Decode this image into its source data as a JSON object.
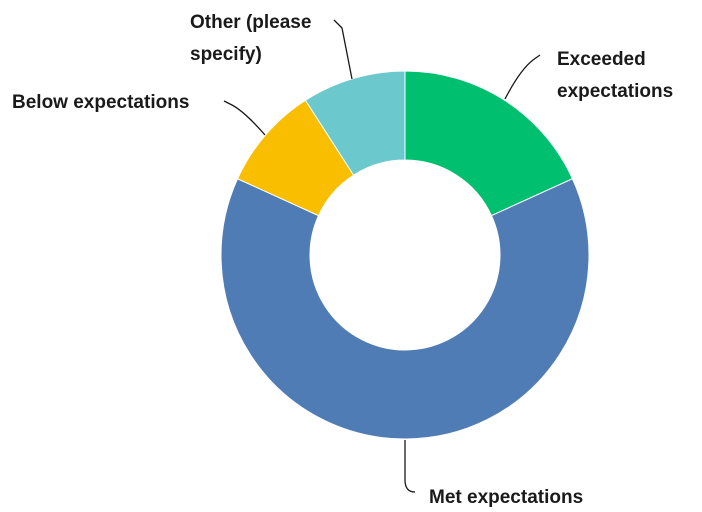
{
  "chart_data": {
    "type": "pie",
    "variant": "donut",
    "title": "",
    "legend": "none",
    "slices": [
      {
        "label": "Exceeded expectations",
        "value": 18.2,
        "color": "#00BF6F"
      },
      {
        "label": "Met expectations",
        "value": 63.6,
        "color": "#507CB6"
      },
      {
        "label": "Below expectations",
        "value": 9.1,
        "color": "#F9BE00"
      },
      {
        "label": "Other (please specify)",
        "value": 9.1,
        "color": "#6BC8CD"
      }
    ]
  }
}
